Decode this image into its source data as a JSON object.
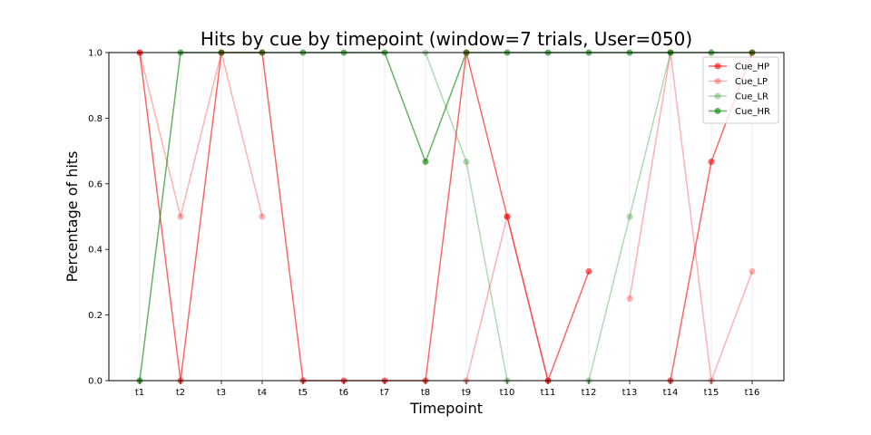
{
  "chart_data": {
    "type": "line",
    "title": "Hits by cue by timepoint (window=7 trials, User=050)",
    "xlabel": "Timepoint",
    "ylabel": "Percentage of hits",
    "categories": [
      "t1",
      "t2",
      "t3",
      "t4",
      "t5",
      "t6",
      "t7",
      "t8",
      "t9",
      "t10",
      "t11",
      "t12",
      "t13",
      "t14",
      "t15",
      "t16"
    ],
    "ylim": [
      0,
      1.0
    ],
    "yticks": [
      "0.0",
      "0.2",
      "0.4",
      "0.6",
      "0.8",
      "1.0"
    ],
    "grid": "vertical",
    "legend_position": "top-right",
    "series": [
      {
        "name": "Cue_HP",
        "color": "#ff0000",
        "opacity": 0.6,
        "values": [
          1.0,
          0.0,
          1.0,
          1.0,
          0.0,
          0.0,
          0.0,
          0.0,
          1.0,
          0.5,
          0.0,
          0.333,
          null,
          0.0,
          0.667,
          1.0
        ]
      },
      {
        "name": "Cue_LP",
        "color": "#ff0000",
        "opacity": 0.3,
        "values": [
          1.0,
          0.5,
          1.0,
          0.5,
          null,
          null,
          null,
          null,
          0.0,
          0.5,
          0.0,
          null,
          0.25,
          1.0,
          0.0,
          0.333
        ]
      },
      {
        "name": "Cue_LR",
        "color": "#008000",
        "opacity": 0.3,
        "values": [
          null,
          null,
          null,
          null,
          null,
          null,
          null,
          1.0,
          0.667,
          0.0,
          null,
          0.0,
          0.5,
          1.0,
          null,
          null
        ]
      },
      {
        "name": "Cue_HR",
        "color": "#008000",
        "opacity": 0.6,
        "values": [
          0.0,
          1.0,
          1.0,
          1.0,
          1.0,
          1.0,
          1.0,
          0.667,
          1.0,
          1.0,
          1.0,
          1.0,
          1.0,
          1.0,
          1.0,
          1.0
        ]
      }
    ]
  }
}
